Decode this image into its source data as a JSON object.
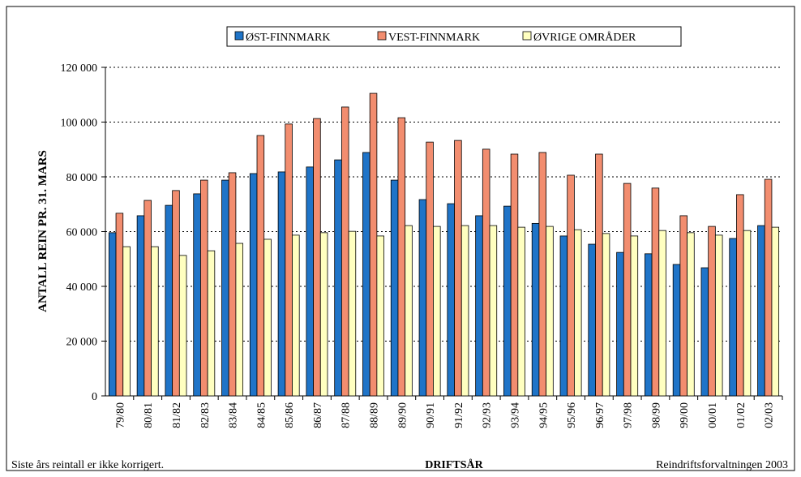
{
  "chart_data": {
    "type": "bar",
    "categories": [
      "79/80",
      "80/81",
      "81/82",
      "82/83",
      "83/84",
      "84/85",
      "85/86",
      "86/87",
      "87/88",
      "88/89",
      "89/90",
      "90/91",
      "91/92",
      "92/93",
      "93/94",
      "94/95",
      "95/96",
      "96/97",
      "97/98",
      "98/99",
      "99/00",
      "00/01",
      "01/02",
      "02/03"
    ],
    "series": [
      {
        "name": "ØST-FINNMARK",
        "color": "#1f74c8",
        "values": [
          59600,
          65800,
          69600,
          73800,
          78800,
          81200,
          81800,
          83600,
          86200,
          88900,
          78800,
          71700,
          70200,
          65800,
          69300,
          63000,
          58400,
          55400,
          52400,
          51900,
          48000,
          46800,
          57500,
          62200
        ]
      },
      {
        "name": "VEST-FINNMARK",
        "color": "#f28d6f",
        "values": [
          66700,
          71400,
          75000,
          78800,
          81500,
          95100,
          99300,
          101300,
          105500,
          110500,
          101600,
          92700,
          93300,
          90100,
          88300,
          88900,
          80600,
          88300,
          77600,
          75900,
          65800,
          61900,
          73500,
          79100
        ]
      },
      {
        "name": "ØVRIGE OMRÅDER",
        "color": "#ffffc0",
        "values": [
          54500,
          54500,
          51300,
          53000,
          55700,
          57200,
          58700,
          59600,
          60100,
          58400,
          62200,
          61900,
          62200,
          62200,
          61600,
          61900,
          60700,
          59300,
          58400,
          60400,
          59600,
          58700,
          60400,
          61600
        ]
      }
    ],
    "ylim": [
      0,
      120000
    ],
    "yticks": [
      0,
      {
        "value": 20000,
        "label": "20 000"
      },
      {
        "value": 40000,
        "label": "40 000"
      },
      {
        "value": 60000,
        "label": "60 000"
      },
      {
        "value": 80000,
        "label": "80 000"
      },
      {
        "value": 100000,
        "label": "100 000"
      },
      {
        "value": 120000,
        "label": "120 000"
      }
    ],
    "grid": true,
    "ylabel": "ANTALL REIN PR. 31. MARS",
    "xlabel": "DRIFTSÅR",
    "note_left": "Siste års reintall er ikke korrigert.",
    "note_right": "Reindriftsforvaltningen 2003"
  }
}
